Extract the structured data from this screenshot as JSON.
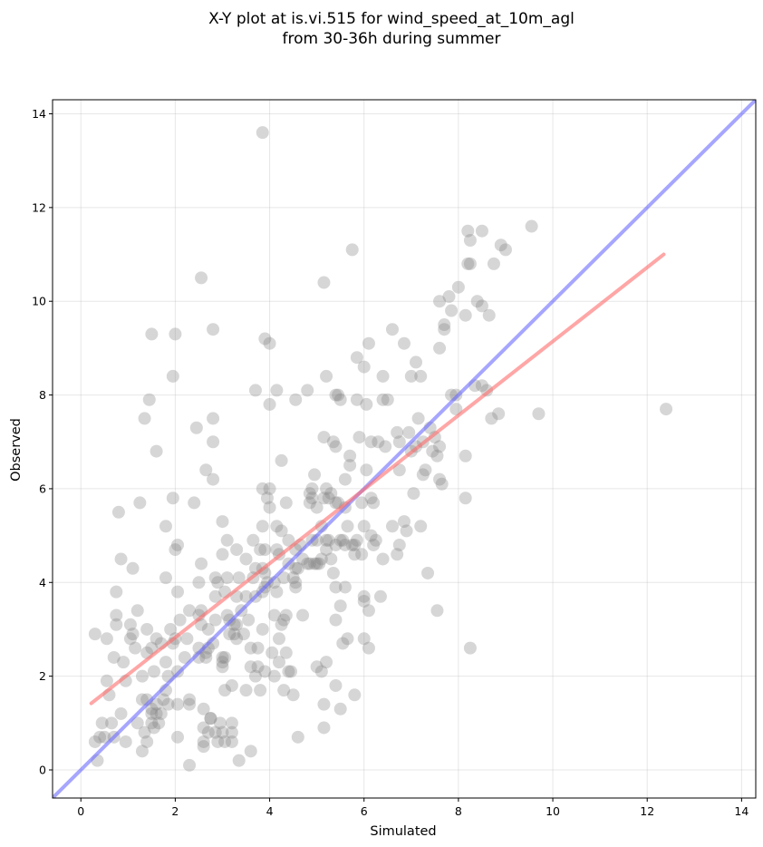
{
  "chart_data": {
    "type": "scatter",
    "title_lines": [
      "X-Y plot at is.vi.515 for wind_speed_at_10m_agl",
      "from 30-36h during summer"
    ],
    "xlabel": "Simulated",
    "ylabel": "Observed",
    "xlim": [
      -0.6,
      14.3
    ],
    "ylim": [
      -0.6,
      14.3
    ],
    "xticks": [
      0,
      2,
      4,
      6,
      8,
      10,
      12,
      14
    ],
    "yticks": [
      0,
      2,
      4,
      6,
      8,
      10,
      12,
      14
    ],
    "grid": true,
    "colors": {
      "points": "#808080",
      "one_to_one": "#6b6bff",
      "regression": "#ff6b6b"
    },
    "one_to_one_line": {
      "from": [
        -0.6,
        -0.6
      ],
      "to": [
        14.3,
        14.3
      ]
    },
    "regression_line": {
      "from": [
        0.22,
        1.42
      ],
      "to": [
        12.35,
        11.0
      ]
    },
    "points": [
      [
        0.3,
        2.9
      ],
      [
        0.3,
        0.6
      ],
      [
        0.4,
        0.7
      ],
      [
        0.35,
        0.2
      ],
      [
        0.45,
        1.0
      ],
      [
        0.5,
        0.7
      ],
      [
        0.55,
        1.9
      ],
      [
        0.55,
        2.8
      ],
      [
        0.6,
        1.6
      ],
      [
        0.65,
        1.0
      ],
      [
        0.7,
        2.4
      ],
      [
        0.7,
        0.7
      ],
      [
        0.75,
        3.8
      ],
      [
        0.75,
        3.3
      ],
      [
        0.75,
        3.1
      ],
      [
        0.8,
        5.5
      ],
      [
        0.85,
        1.2
      ],
      [
        0.85,
        4.5
      ],
      [
        0.9,
        2.3
      ],
      [
        0.95,
        1.9
      ],
      [
        0.95,
        0.6
      ],
      [
        1.05,
        3.1
      ],
      [
        1.05,
        2.8
      ],
      [
        1.1,
        4.3
      ],
      [
        1.1,
        2.9
      ],
      [
        1.15,
        2.6
      ],
      [
        1.2,
        3.4
      ],
      [
        1.2,
        1.0
      ],
      [
        1.25,
        5.7
      ],
      [
        1.3,
        2.0
      ],
      [
        1.3,
        1.5
      ],
      [
        1.3,
        0.4
      ],
      [
        1.35,
        7.5
      ],
      [
        1.35,
        0.8
      ],
      [
        1.4,
        3.0
      ],
      [
        1.4,
        2.5
      ],
      [
        1.4,
        1.5
      ],
      [
        1.4,
        0.6
      ],
      [
        1.45,
        7.9
      ],
      [
        1.5,
        9.3
      ],
      [
        1.5,
        2.6
      ],
      [
        1.5,
        1.3
      ],
      [
        1.5,
        1.2
      ],
      [
        1.5,
        1.0
      ],
      [
        1.55,
        0.9
      ],
      [
        1.55,
        2.1
      ],
      [
        1.6,
        2.8
      ],
      [
        1.6,
        1.4
      ],
      [
        1.6,
        1.2
      ],
      [
        1.6,
        6.8
      ],
      [
        1.65,
        1.0
      ],
      [
        1.7,
        2.7
      ],
      [
        1.7,
        1.2
      ],
      [
        1.75,
        1.5
      ],
      [
        1.8,
        5.2
      ],
      [
        1.8,
        4.1
      ],
      [
        1.8,
        2.3
      ],
      [
        1.8,
        1.7
      ],
      [
        1.85,
        1.4
      ],
      [
        1.85,
        2.0
      ],
      [
        1.9,
        3.0
      ],
      [
        1.95,
        8.4
      ],
      [
        1.95,
        5.8
      ],
      [
        1.95,
        2.7
      ],
      [
        2.0,
        9.3
      ],
      [
        2.0,
        4.7
      ],
      [
        2.0,
        2.8
      ],
      [
        2.05,
        4.8
      ],
      [
        2.05,
        3.8
      ],
      [
        2.05,
        2.1
      ],
      [
        2.05,
        1.4
      ],
      [
        2.05,
        0.7
      ],
      [
        2.1,
        3.2
      ],
      [
        2.2,
        2.4
      ],
      [
        2.25,
        2.8
      ],
      [
        2.3,
        3.4
      ],
      [
        2.3,
        1.5
      ],
      [
        2.3,
        1.4
      ],
      [
        2.3,
        0.1
      ],
      [
        2.4,
        5.7
      ],
      [
        2.45,
        7.3
      ],
      [
        2.5,
        4.0
      ],
      [
        2.5,
        3.3
      ],
      [
        2.5,
        2.6
      ],
      [
        2.5,
        2.4
      ],
      [
        2.55,
        10.5
      ],
      [
        2.55,
        4.4
      ],
      [
        2.55,
        3.4
      ],
      [
        2.55,
        3.1
      ],
      [
        2.6,
        0.9
      ],
      [
        2.6,
        0.6
      ],
      [
        2.6,
        0.5
      ],
      [
        2.6,
        1.3
      ],
      [
        2.65,
        6.4
      ],
      [
        2.65,
        2.5
      ],
      [
        2.65,
        2.4
      ],
      [
        2.7,
        3.0
      ],
      [
        2.7,
        2.6
      ],
      [
        2.7,
        0.8
      ],
      [
        2.75,
        1.1
      ],
      [
        2.75,
        1.1
      ],
      [
        2.8,
        7.5
      ],
      [
        2.8,
        9.4
      ],
      [
        2.8,
        7.0
      ],
      [
        2.8,
        6.2
      ],
      [
        2.8,
        2.7
      ],
      [
        2.85,
        4.1
      ],
      [
        2.85,
        3.7
      ],
      [
        2.85,
        3.2
      ],
      [
        2.85,
        0.8
      ],
      [
        2.9,
        0.6
      ],
      [
        2.9,
        4.0
      ],
      [
        2.95,
        1.0
      ],
      [
        3.0,
        5.3
      ],
      [
        3.0,
        4.6
      ],
      [
        3.0,
        2.4
      ],
      [
        3.0,
        2.3
      ],
      [
        3.0,
        2.2
      ],
      [
        3.0,
        0.8
      ],
      [
        3.05,
        3.8
      ],
      [
        3.05,
        2.4
      ],
      [
        3.05,
        1.7
      ],
      [
        3.05,
        0.6
      ],
      [
        3.1,
        4.9
      ],
      [
        3.1,
        4.1
      ],
      [
        3.1,
        3.3
      ],
      [
        3.15,
        3.2
      ],
      [
        3.15,
        2.9
      ],
      [
        3.2,
        1.8
      ],
      [
        3.2,
        0.8
      ],
      [
        3.2,
        0.6
      ],
      [
        3.2,
        1.0
      ],
      [
        3.25,
        3.1
      ],
      [
        3.25,
        2.9
      ],
      [
        3.3,
        4.7
      ],
      [
        3.3,
        3.7
      ],
      [
        3.3,
        3.1
      ],
      [
        3.3,
        2.8
      ],
      [
        3.35,
        4.1
      ],
      [
        3.35,
        0.2
      ],
      [
        3.4,
        3.4
      ],
      [
        3.45,
        2.9
      ],
      [
        3.5,
        4.5
      ],
      [
        3.5,
        3.7
      ],
      [
        3.5,
        1.7
      ],
      [
        3.55,
        3.2
      ],
      [
        3.6,
        2.2
      ],
      [
        3.6,
        2.6
      ],
      [
        3.6,
        0.4
      ],
      [
        3.65,
        4.9
      ],
      [
        3.65,
        4.1
      ],
      [
        3.7,
        8.1
      ],
      [
        3.7,
        4.3
      ],
      [
        3.7,
        3.7
      ],
      [
        3.7,
        2.0
      ],
      [
        3.75,
        2.2
      ],
      [
        3.75,
        2.6
      ],
      [
        3.8,
        4.7
      ],
      [
        3.8,
        1.7
      ],
      [
        3.85,
        13.6
      ],
      [
        3.85,
        6.0
      ],
      [
        3.85,
        5.2
      ],
      [
        3.85,
        4.3
      ],
      [
        3.85,
        3.8
      ],
      [
        3.85,
        3.0
      ],
      [
        3.9,
        9.2
      ],
      [
        3.9,
        4.7
      ],
      [
        3.9,
        4.2
      ],
      [
        3.9,
        3.9
      ],
      [
        3.9,
        2.1
      ],
      [
        3.95,
        5.8
      ],
      [
        3.95,
        4.0
      ],
      [
        4.0,
        5.6
      ],
      [
        4.0,
        9.1
      ],
      [
        4.0,
        7.8
      ],
      [
        4.0,
        6.0
      ],
      [
        4.05,
        2.5
      ],
      [
        4.1,
        4.0
      ],
      [
        4.1,
        3.3
      ],
      [
        4.1,
        2.0
      ],
      [
        4.15,
        8.1
      ],
      [
        4.15,
        5.2
      ],
      [
        4.15,
        4.7
      ],
      [
        4.15,
        3.8
      ],
      [
        4.2,
        4.6
      ],
      [
        4.2,
        2.8
      ],
      [
        4.2,
        2.3
      ],
      [
        4.25,
        6.6
      ],
      [
        4.25,
        5.1
      ],
      [
        4.25,
        3.1
      ],
      [
        4.3,
        4.1
      ],
      [
        4.3,
        3.2
      ],
      [
        4.3,
        1.7
      ],
      [
        4.35,
        5.7
      ],
      [
        4.35,
        3.3
      ],
      [
        4.35,
        2.5
      ],
      [
        4.4,
        4.9
      ],
      [
        4.4,
        4.4
      ],
      [
        4.4,
        2.1
      ],
      [
        4.45,
        2.1
      ],
      [
        4.5,
        4.1
      ],
      [
        4.5,
        1.6
      ],
      [
        4.55,
        7.9
      ],
      [
        4.55,
        4.7
      ],
      [
        4.55,
        4.3
      ],
      [
        4.55,
        4.0
      ],
      [
        4.55,
        3.9
      ],
      [
        4.6,
        4.3
      ],
      [
        4.6,
        0.7
      ],
      [
        4.65,
        4.8
      ],
      [
        4.7,
        4.5
      ],
      [
        4.7,
        3.3
      ],
      [
        4.8,
        8.1
      ],
      [
        4.8,
        4.4
      ],
      [
        4.85,
        5.9
      ],
      [
        4.85,
        5.7
      ],
      [
        4.85,
        4.4
      ],
      [
        4.9,
        6.0
      ],
      [
        4.9,
        5.8
      ],
      [
        4.9,
        4.9
      ],
      [
        4.95,
        6.3
      ],
      [
        4.95,
        4.4
      ],
      [
        5.0,
        5.6
      ],
      [
        5.0,
        4.9
      ],
      [
        5.0,
        4.4
      ],
      [
        5.0,
        2.2
      ],
      [
        5.05,
        4.4
      ],
      [
        5.1,
        5.2
      ],
      [
        5.1,
        4.5
      ],
      [
        5.1,
        2.1
      ],
      [
        5.15,
        10.4
      ],
      [
        5.15,
        7.1
      ],
      [
        5.15,
        5.8
      ],
      [
        5.15,
        1.4
      ],
      [
        5.15,
        0.9
      ],
      [
        5.2,
        8.4
      ],
      [
        5.2,
        6.0
      ],
      [
        5.2,
        4.9
      ],
      [
        5.2,
        4.7
      ],
      [
        5.2,
        2.3
      ],
      [
        5.25,
        4.9
      ],
      [
        5.25,
        5.8
      ],
      [
        5.3,
        5.9
      ],
      [
        5.3,
        4.5
      ],
      [
        5.35,
        7.0
      ],
      [
        5.35,
        4.2
      ],
      [
        5.4,
        8.0
      ],
      [
        5.4,
        6.9
      ],
      [
        5.4,
        5.7
      ],
      [
        5.4,
        4.8
      ],
      [
        5.4,
        3.9
      ],
      [
        5.4,
        3.2
      ],
      [
        5.4,
        1.8
      ],
      [
        5.45,
        8.0
      ],
      [
        5.45,
        5.7
      ],
      [
        5.5,
        7.9
      ],
      [
        5.5,
        4.9
      ],
      [
        5.5,
        3.5
      ],
      [
        5.5,
        1.3
      ],
      [
        5.55,
        4.9
      ],
      [
        5.55,
        2.7
      ],
      [
        5.6,
        6.2
      ],
      [
        5.6,
        5.6
      ],
      [
        5.6,
        4.8
      ],
      [
        5.6,
        3.9
      ],
      [
        5.65,
        5.2
      ],
      [
        5.65,
        2.8
      ],
      [
        5.7,
        6.7
      ],
      [
        5.7,
        6.5
      ],
      [
        5.75,
        11.1
      ],
      [
        5.75,
        4.8
      ],
      [
        5.8,
        4.8
      ],
      [
        5.8,
        4.6
      ],
      [
        5.8,
        1.6
      ],
      [
        5.85,
        8.8
      ],
      [
        5.85,
        7.9
      ],
      [
        5.85,
        4.9
      ],
      [
        5.9,
        7.1
      ],
      [
        5.95,
        5.7
      ],
      [
        5.95,
        4.6
      ],
      [
        6.0,
        8.6
      ],
      [
        6.0,
        5.2
      ],
      [
        6.0,
        3.7
      ],
      [
        6.0,
        3.6
      ],
      [
        6.0,
        2.8
      ],
      [
        6.05,
        6.4
      ],
      [
        6.05,
        7.8
      ],
      [
        6.1,
        9.1
      ],
      [
        6.1,
        2.6
      ],
      [
        6.1,
        3.4
      ],
      [
        6.15,
        7.0
      ],
      [
        6.15,
        5.8
      ],
      [
        6.15,
        5.0
      ],
      [
        6.2,
        5.7
      ],
      [
        6.2,
        4.8
      ],
      [
        6.25,
        4.9
      ],
      [
        6.3,
        7.0
      ],
      [
        6.35,
        3.7
      ],
      [
        6.4,
        8.4
      ],
      [
        6.4,
        7.9
      ],
      [
        6.4,
        4.5
      ],
      [
        6.45,
        6.9
      ],
      [
        6.5,
        7.9
      ],
      [
        6.6,
        9.4
      ],
      [
        6.6,
        5.2
      ],
      [
        6.7,
        4.6
      ],
      [
        6.7,
        7.2
      ],
      [
        6.75,
        4.8
      ],
      [
        6.75,
        6.4
      ],
      [
        6.75,
        7.0
      ],
      [
        6.85,
        9.1
      ],
      [
        6.85,
        5.3
      ],
      [
        6.9,
        5.1
      ],
      [
        6.95,
        7.2
      ],
      [
        7.0,
        8.4
      ],
      [
        7.0,
        6.8
      ],
      [
        7.05,
        5.9
      ],
      [
        7.1,
        8.7
      ],
      [
        7.1,
        6.9
      ],
      [
        7.15,
        7.5
      ],
      [
        7.2,
        8.4
      ],
      [
        7.2,
        5.2
      ],
      [
        7.25,
        7.0
      ],
      [
        7.25,
        6.3
      ],
      [
        7.3,
        6.4
      ],
      [
        7.35,
        4.2
      ],
      [
        7.4,
        7.3
      ],
      [
        7.45,
        6.8
      ],
      [
        7.5,
        7.1
      ],
      [
        7.55,
        6.7
      ],
      [
        7.55,
        3.4
      ],
      [
        7.6,
        9.0
      ],
      [
        7.6,
        10.0
      ],
      [
        7.6,
        6.9
      ],
      [
        7.6,
        6.2
      ],
      [
        7.65,
        6.1
      ],
      [
        7.7,
        9.5
      ],
      [
        7.7,
        9.4
      ],
      [
        7.8,
        10.1
      ],
      [
        7.85,
        9.8
      ],
      [
        7.85,
        8.0
      ],
      [
        7.95,
        7.7
      ],
      [
        7.95,
        8.0
      ],
      [
        8.0,
        10.3
      ],
      [
        8.15,
        9.7
      ],
      [
        8.15,
        6.7
      ],
      [
        8.15,
        5.8
      ],
      [
        8.2,
        11.5
      ],
      [
        8.2,
        10.8
      ],
      [
        8.25,
        10.8
      ],
      [
        8.25,
        11.3
      ],
      [
        8.25,
        2.6
      ],
      [
        8.35,
        8.2
      ],
      [
        8.4,
        10.0
      ],
      [
        8.5,
        11.5
      ],
      [
        8.5,
        9.9
      ],
      [
        8.5,
        8.2
      ],
      [
        8.6,
        8.1
      ],
      [
        8.65,
        9.7
      ],
      [
        8.7,
        7.5
      ],
      [
        8.75,
        10.8
      ],
      [
        8.85,
        7.6
      ],
      [
        8.9,
        11.2
      ],
      [
        9.0,
        11.1
      ],
      [
        9.55,
        11.6
      ],
      [
        9.7,
        7.6
      ],
      [
        12.4,
        7.7
      ]
    ]
  }
}
